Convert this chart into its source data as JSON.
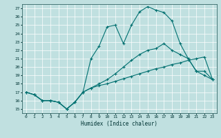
{
  "xlabel": "Humidex (Indice chaleur)",
  "background_color": "#c0e0e0",
  "line_color": "#007070",
  "x": [
    0,
    1,
    2,
    3,
    4,
    5,
    6,
    7,
    8,
    9,
    10,
    11,
    12,
    13,
    14,
    15,
    16,
    17,
    18,
    19,
    20,
    21,
    22,
    23
  ],
  "line_top": [
    17.0,
    16.7,
    16.0,
    16.0,
    15.8,
    15.0,
    15.8,
    17.0,
    21.0,
    22.5,
    24.8,
    25.0,
    22.8,
    25.0,
    26.6,
    27.2,
    26.8,
    26.5,
    25.5,
    22.8,
    21.0,
    19.5,
    19.5,
    18.5
  ],
  "line_mid": [
    17.0,
    16.7,
    16.0,
    16.0,
    15.8,
    15.0,
    15.8,
    17.0,
    17.5,
    18.0,
    18.5,
    19.2,
    20.0,
    20.8,
    21.5,
    22.0,
    22.2,
    22.8,
    22.0,
    21.5,
    21.0,
    19.5,
    19.0,
    18.5
  ],
  "line_bot": [
    17.0,
    16.7,
    16.0,
    16.0,
    15.8,
    15.0,
    15.8,
    17.0,
    17.5,
    17.8,
    18.0,
    18.3,
    18.6,
    18.9,
    19.2,
    19.5,
    19.8,
    20.0,
    20.3,
    20.5,
    20.8,
    21.0,
    21.2,
    18.5
  ],
  "xlim": [
    -0.5,
    23.5
  ],
  "ylim": [
    14.5,
    27.5
  ],
  "yticks": [
    15,
    16,
    17,
    18,
    19,
    20,
    21,
    22,
    23,
    24,
    25,
    26,
    27
  ],
  "xticks": [
    0,
    1,
    2,
    3,
    4,
    5,
    6,
    7,
    8,
    9,
    10,
    11,
    12,
    13,
    14,
    15,
    16,
    17,
    18,
    19,
    20,
    21,
    22,
    23
  ]
}
